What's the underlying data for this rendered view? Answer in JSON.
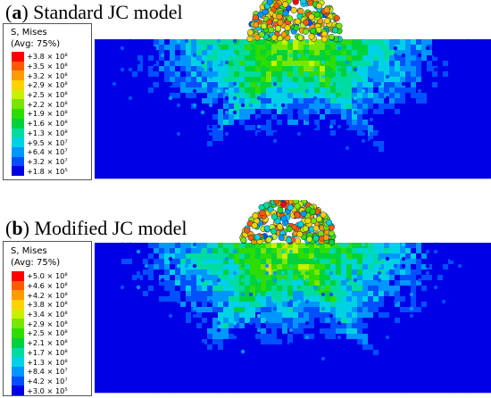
{
  "panels": [
    {
      "id": "a",
      "label_letter": "a",
      "label_rest": "Standard JC model",
      "legend": {
        "title_line1": "S, Mises",
        "title_line2": "(Avg: 75%)",
        "entries": [
          {
            "text": "+3.8 × 10⁸",
            "color": "#ff0000"
          },
          {
            "text": "+3.5 × 10⁸",
            "color": "#ff5a00"
          },
          {
            "text": "+3.2 × 10⁸",
            "color": "#ff9b00"
          },
          {
            "text": "+2.9 × 10⁸",
            "color": "#ffd200"
          },
          {
            "text": "+2.5 × 10⁸",
            "color": "#c8f000"
          },
          {
            "text": "+2.2 × 10⁸",
            "color": "#78e600"
          },
          {
            "text": "+1.9 × 10⁸",
            "color": "#2ddc00"
          },
          {
            "text": "+1.6 × 10⁸",
            "color": "#00d23c"
          },
          {
            "text": "+1.3 × 10⁸",
            "color": "#00dca0"
          },
          {
            "text": "+9.5 × 10⁷",
            "color": "#00d2e6"
          },
          {
            "text": "+6.4 × 10⁷",
            "color": "#0096ff"
          },
          {
            "text": "+3.2 × 10⁷",
            "color": "#0050ff"
          },
          {
            "text": "+1.8 × 10⁵",
            "color": "#0000e6"
          }
        ]
      }
    },
    {
      "id": "b",
      "label_letter": "b",
      "label_rest": "Modified JC model",
      "legend": {
        "title_line1": "S, Mises",
        "title_line2": "(Avg: 75%)",
        "entries": [
          {
            "text": "+5.0 × 10⁸",
            "color": "#ff0000"
          },
          {
            "text": "+4.6 × 10⁸",
            "color": "#ff5a00"
          },
          {
            "text": "+4.2 × 10⁸",
            "color": "#ff9b00"
          },
          {
            "text": "+3.8 × 10⁸",
            "color": "#ffd200"
          },
          {
            "text": "+3.4 × 10⁸",
            "color": "#c8f000"
          },
          {
            "text": "+2.9 × 10⁸",
            "color": "#78e600"
          },
          {
            "text": "+2.5 × 10⁸",
            "color": "#2ddc00"
          },
          {
            "text": "+2.1 × 10⁸",
            "color": "#00d23c"
          },
          {
            "text": "+1.7 × 10⁸",
            "color": "#00dca0"
          },
          {
            "text": "+1.3 × 10⁸",
            "color": "#00d2e6"
          },
          {
            "text": "+8.4 × 10⁷",
            "color": "#0096ff"
          },
          {
            "text": "+4.2 × 10⁷",
            "color": "#0050ff"
          },
          {
            "text": "+3.0 × 10⁵",
            "color": "#0000e6"
          }
        ]
      }
    }
  ]
}
